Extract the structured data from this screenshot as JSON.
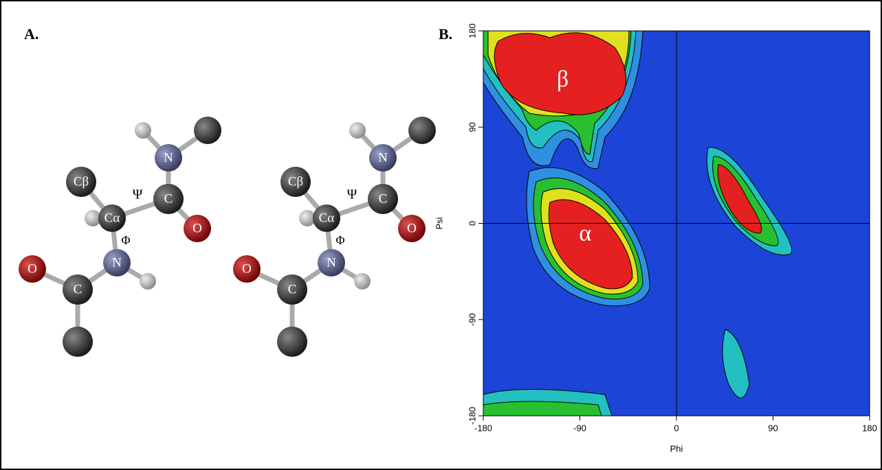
{
  "panel_labels": [
    "A.",
    "B."
  ],
  "molecule": {
    "atom_labels": [
      "Cβ",
      "Cα",
      "C",
      "O",
      "N",
      "N",
      "C",
      "O"
    ],
    "angle_labels": [
      "Ψ",
      "Φ"
    ]
  },
  "chart_data": {
    "type": "contour",
    "x_label": "Phi",
    "y_label": "Psi",
    "xlim": [
      -180,
      180
    ],
    "ylim": [
      -180,
      180
    ],
    "xticks": [
      -180,
      -90,
      0,
      90,
      180
    ],
    "yticks": [
      -180,
      -90,
      0,
      90,
      180
    ],
    "vlines": [
      0
    ],
    "hlines": [
      0
    ],
    "annotations": [
      {
        "text": "β",
        "x": -106,
        "y": 133
      },
      {
        "text": "α",
        "x": -85,
        "y": -11
      }
    ]
  }
}
